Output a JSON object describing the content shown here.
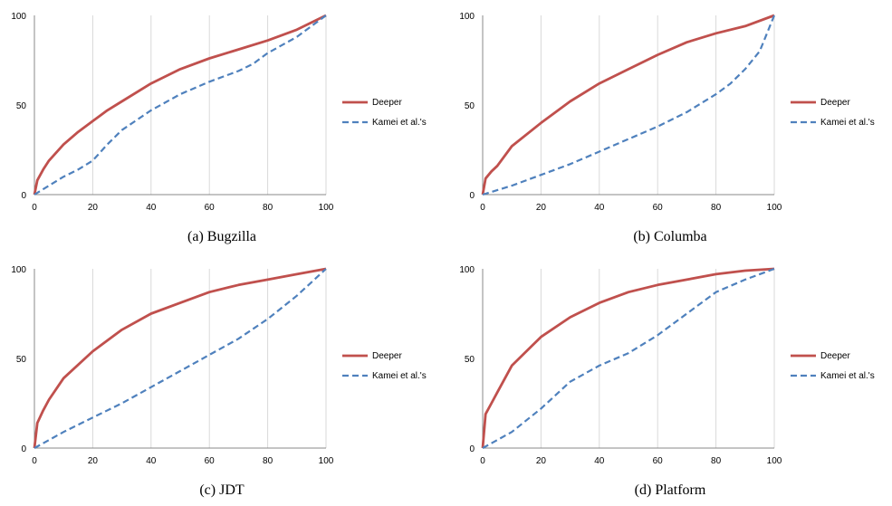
{
  "charts": [
    {
      "caption": "(a)  Bugzilla",
      "chart_data": {
        "type": "line",
        "xlim": [
          0,
          100
        ],
        "ylim": [
          0,
          100
        ],
        "xticks": [
          0,
          20,
          40,
          60,
          80,
          100
        ],
        "yticks": [
          0,
          50,
          100
        ],
        "grid": "vertical",
        "legend_position": "right",
        "series": [
          {
            "name": "Deeper",
            "color": "#c0504d",
            "style": "solid",
            "points": [
              [
                0,
                0
              ],
              [
                1,
                8
              ],
              [
                3,
                14
              ],
              [
                5,
                19
              ],
              [
                10,
                28
              ],
              [
                15,
                35
              ],
              [
                20,
                41
              ],
              [
                25,
                47
              ],
              [
                30,
                52
              ],
              [
                40,
                62
              ],
              [
                50,
                70
              ],
              [
                60,
                76
              ],
              [
                70,
                81
              ],
              [
                80,
                86
              ],
              [
                90,
                92
              ],
              [
                100,
                100
              ]
            ]
          },
          {
            "name": "Kamei et al.'s",
            "color": "#4f81bd",
            "style": "dashed",
            "points": [
              [
                0,
                0
              ],
              [
                5,
                5
              ],
              [
                10,
                10
              ],
              [
                15,
                14
              ],
              [
                20,
                19
              ],
              [
                25,
                28
              ],
              [
                30,
                36
              ],
              [
                40,
                47
              ],
              [
                50,
                56
              ],
              [
                60,
                63
              ],
              [
                70,
                69
              ],
              [
                75,
                73
              ],
              [
                80,
                79
              ],
              [
                90,
                88
              ],
              [
                100,
                100
              ]
            ]
          }
        ]
      }
    },
    {
      "caption": "(b)  Columba",
      "chart_data": {
        "type": "line",
        "xlim": [
          0,
          100
        ],
        "ylim": [
          0,
          100
        ],
        "xticks": [
          0,
          20,
          40,
          60,
          80,
          100
        ],
        "yticks": [
          0,
          50,
          100
        ],
        "grid": "vertical",
        "legend_position": "right",
        "series": [
          {
            "name": "Deeper",
            "color": "#c0504d",
            "style": "solid",
            "points": [
              [
                0,
                0
              ],
              [
                1,
                9
              ],
              [
                3,
                13
              ],
              [
                5,
                16
              ],
              [
                10,
                27
              ],
              [
                20,
                40
              ],
              [
                30,
                52
              ],
              [
                40,
                62
              ],
              [
                50,
                70
              ],
              [
                60,
                78
              ],
              [
                70,
                85
              ],
              [
                80,
                90
              ],
              [
                90,
                94
              ],
              [
                100,
                100
              ]
            ]
          },
          {
            "name": "Kamei et al.'s",
            "color": "#4f81bd",
            "style": "dashed",
            "points": [
              [
                0,
                0
              ],
              [
                10,
                5
              ],
              [
                20,
                11
              ],
              [
                30,
                17
              ],
              [
                40,
                24
              ],
              [
                50,
                31
              ],
              [
                60,
                38
              ],
              [
                70,
                46
              ],
              [
                80,
                56
              ],
              [
                85,
                62
              ],
              [
                90,
                70
              ],
              [
                95,
                80
              ],
              [
                100,
                100
              ]
            ]
          }
        ]
      }
    },
    {
      "caption": "(c)  JDT",
      "chart_data": {
        "type": "line",
        "xlim": [
          0,
          100
        ],
        "ylim": [
          0,
          100
        ],
        "xticks": [
          0,
          20,
          40,
          60,
          80,
          100
        ],
        "yticks": [
          0,
          50,
          100
        ],
        "grid": "vertical",
        "legend_position": "right",
        "series": [
          {
            "name": "Deeper",
            "color": "#c0504d",
            "style": "solid",
            "points": [
              [
                0,
                0
              ],
              [
                1,
                14
              ],
              [
                3,
                21
              ],
              [
                5,
                27
              ],
              [
                10,
                39
              ],
              [
                20,
                54
              ],
              [
                30,
                66
              ],
              [
                40,
                75
              ],
              [
                50,
                81
              ],
              [
                60,
                87
              ],
              [
                70,
                91
              ],
              [
                80,
                94
              ],
              [
                90,
                97
              ],
              [
                100,
                100
              ]
            ]
          },
          {
            "name": "Kamei et al.'s",
            "color": "#4f81bd",
            "style": "dashed",
            "points": [
              [
                0,
                0
              ],
              [
                10,
                9
              ],
              [
                20,
                17
              ],
              [
                30,
                25
              ],
              [
                40,
                34
              ],
              [
                50,
                43
              ],
              [
                60,
                52
              ],
              [
                70,
                61
              ],
              [
                80,
                72
              ],
              [
                90,
                85
              ],
              [
                100,
                100
              ]
            ]
          }
        ]
      }
    },
    {
      "caption": "(d)  Platform",
      "chart_data": {
        "type": "line",
        "xlim": [
          0,
          100
        ],
        "ylim": [
          0,
          100
        ],
        "xticks": [
          0,
          20,
          40,
          60,
          80,
          100
        ],
        "yticks": [
          0,
          50,
          100
        ],
        "grid": "vertical",
        "legend_position": "right",
        "series": [
          {
            "name": "Deeper",
            "color": "#c0504d",
            "style": "solid",
            "points": [
              [
                0,
                0
              ],
              [
                1,
                19
              ],
              [
                3,
                25
              ],
              [
                5,
                31
              ],
              [
                10,
                46
              ],
              [
                20,
                62
              ],
              [
                30,
                73
              ],
              [
                40,
                81
              ],
              [
                50,
                87
              ],
              [
                60,
                91
              ],
              [
                70,
                94
              ],
              [
                80,
                97
              ],
              [
                90,
                99
              ],
              [
                100,
                100
              ]
            ]
          },
          {
            "name": "Kamei et al.'s",
            "color": "#4f81bd",
            "style": "dashed",
            "points": [
              [
                0,
                0
              ],
              [
                10,
                9
              ],
              [
                20,
                22
              ],
              [
                30,
                37
              ],
              [
                40,
                46
              ],
              [
                50,
                53
              ],
              [
                60,
                63
              ],
              [
                70,
                75
              ],
              [
                80,
                87
              ],
              [
                90,
                94
              ],
              [
                100,
                100
              ]
            ]
          }
        ]
      }
    }
  ]
}
